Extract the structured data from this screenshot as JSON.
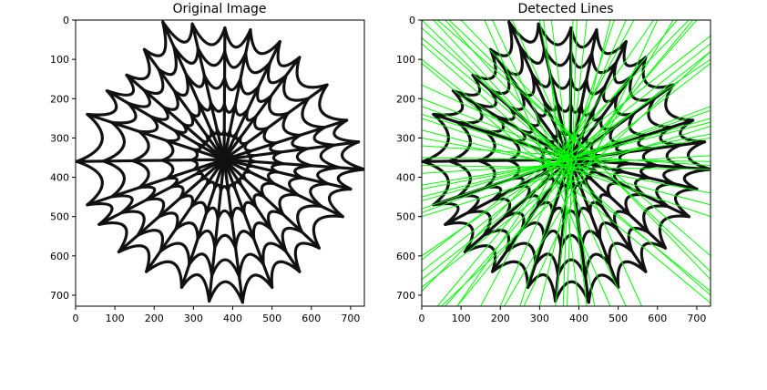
{
  "chart_data": [
    {
      "type": "image",
      "title": "Original Image",
      "xlim": [
        0,
        735
      ],
      "ylim": [
        728,
        0
      ],
      "xticks": [
        0,
        100,
        200,
        300,
        400,
        500,
        600,
        700
      ],
      "yticks": [
        0,
        100,
        200,
        300,
        400,
        500,
        600,
        700
      ],
      "web": {
        "center": [
          378,
          355
        ],
        "spokes": [
          [
            222,
            5
          ],
          [
            297,
            10
          ],
          [
            380,
            20
          ],
          [
            445,
            25
          ],
          [
            520,
            55
          ],
          [
            570,
            95
          ],
          [
            640,
            165
          ],
          [
            690,
            255
          ],
          [
            720,
            310
          ],
          [
            735,
            380
          ],
          [
            700,
            430
          ],
          [
            680,
            500
          ],
          [
            620,
            580
          ],
          [
            570,
            640
          ],
          [
            500,
            680
          ],
          [
            425,
            718
          ],
          [
            340,
            715
          ],
          [
            270,
            680
          ],
          [
            180,
            640
          ],
          [
            110,
            590
          ],
          [
            60,
            520
          ],
          [
            30,
            470
          ],
          [
            3,
            360
          ],
          [
            30,
            240
          ],
          [
            80,
            180
          ],
          [
            130,
            140
          ],
          [
            175,
            75
          ]
        ],
        "ring_levels": [
          0.22,
          0.42,
          0.62,
          0.82,
          1.0
        ]
      }
    },
    {
      "type": "image",
      "title": "Detected Lines",
      "xlim": [
        0,
        735
      ],
      "ylim": [
        728,
        0
      ],
      "xticks": [
        0,
        100,
        200,
        300,
        400,
        500,
        600,
        700
      ],
      "yticks": [
        0,
        100,
        200,
        300,
        400,
        500,
        600,
        700
      ],
      "line_color": "#00ff00",
      "lines": [
        [
          0,
          0,
          380,
          370
        ],
        [
          0,
          20,
          380,
          360
        ],
        [
          30,
          0,
          370,
          365
        ],
        [
          60,
          0,
          380,
          355
        ],
        [
          0,
          45,
          375,
          362
        ],
        [
          0,
          200,
          378,
          345
        ],
        [
          0,
          220,
          370,
          350
        ],
        [
          0,
          240,
          382,
          355
        ],
        [
          0,
          165,
          380,
          340
        ],
        [
          0,
          320,
          735,
          370
        ],
        [
          0,
          350,
          735,
          360
        ],
        [
          0,
          370,
          735,
          380
        ],
        [
          0,
          390,
          735,
          345
        ],
        [
          0,
          460,
          735,
          250
        ],
        [
          0,
          480,
          735,
          230
        ],
        [
          0,
          500,
          735,
          270
        ],
        [
          0,
          610,
          735,
          40
        ],
        [
          0,
          640,
          735,
          60
        ],
        [
          0,
          660,
          735,
          80
        ],
        [
          0,
          680,
          735,
          110
        ],
        [
          50,
          728,
          735,
          80
        ],
        [
          60,
          728,
          700,
          0
        ],
        [
          90,
          728,
          690,
          0
        ],
        [
          210,
          728,
          640,
          0
        ],
        [
          260,
          728,
          600,
          0
        ],
        [
          300,
          728,
          480,
          0
        ],
        [
          230,
          0,
          560,
          728
        ],
        [
          180,
          0,
          520,
          728
        ],
        [
          160,
          0,
          480,
          728
        ],
        [
          330,
          0,
          420,
          728
        ],
        [
          310,
          0,
          400,
          728
        ],
        [
          300,
          0,
          440,
          728
        ],
        [
          385,
          0,
          360,
          728
        ],
        [
          395,
          0,
          370,
          728
        ],
        [
          420,
          0,
          340,
          728
        ],
        [
          490,
          0,
          250,
          728
        ],
        [
          520,
          0,
          200,
          728
        ],
        [
          540,
          0,
          150,
          728
        ],
        [
          590,
          0,
          90,
          728
        ],
        [
          650,
          0,
          40,
          728
        ],
        [
          680,
          0,
          0,
          690
        ],
        [
          735,
          100,
          0,
          600
        ],
        [
          735,
          220,
          0,
          490
        ],
        [
          735,
          260,
          0,
          450
        ],
        [
          735,
          300,
          0,
          420
        ],
        [
          0,
          100,
          735,
          690
        ],
        [
          0,
          110,
          735,
          720
        ],
        [
          40,
          0,
          735,
          600
        ],
        [
          70,
          0,
          735,
          640
        ],
        [
          0,
          60,
          735,
          700
        ],
        [
          0,
          280,
          735,
          470
        ],
        [
          0,
          250,
          735,
          500
        ],
        [
          0,
          300,
          735,
          440
        ],
        [
          100,
          0,
          735,
          660
        ],
        [
          0,
          430,
          735,
          290
        ]
      ]
    }
  ]
}
